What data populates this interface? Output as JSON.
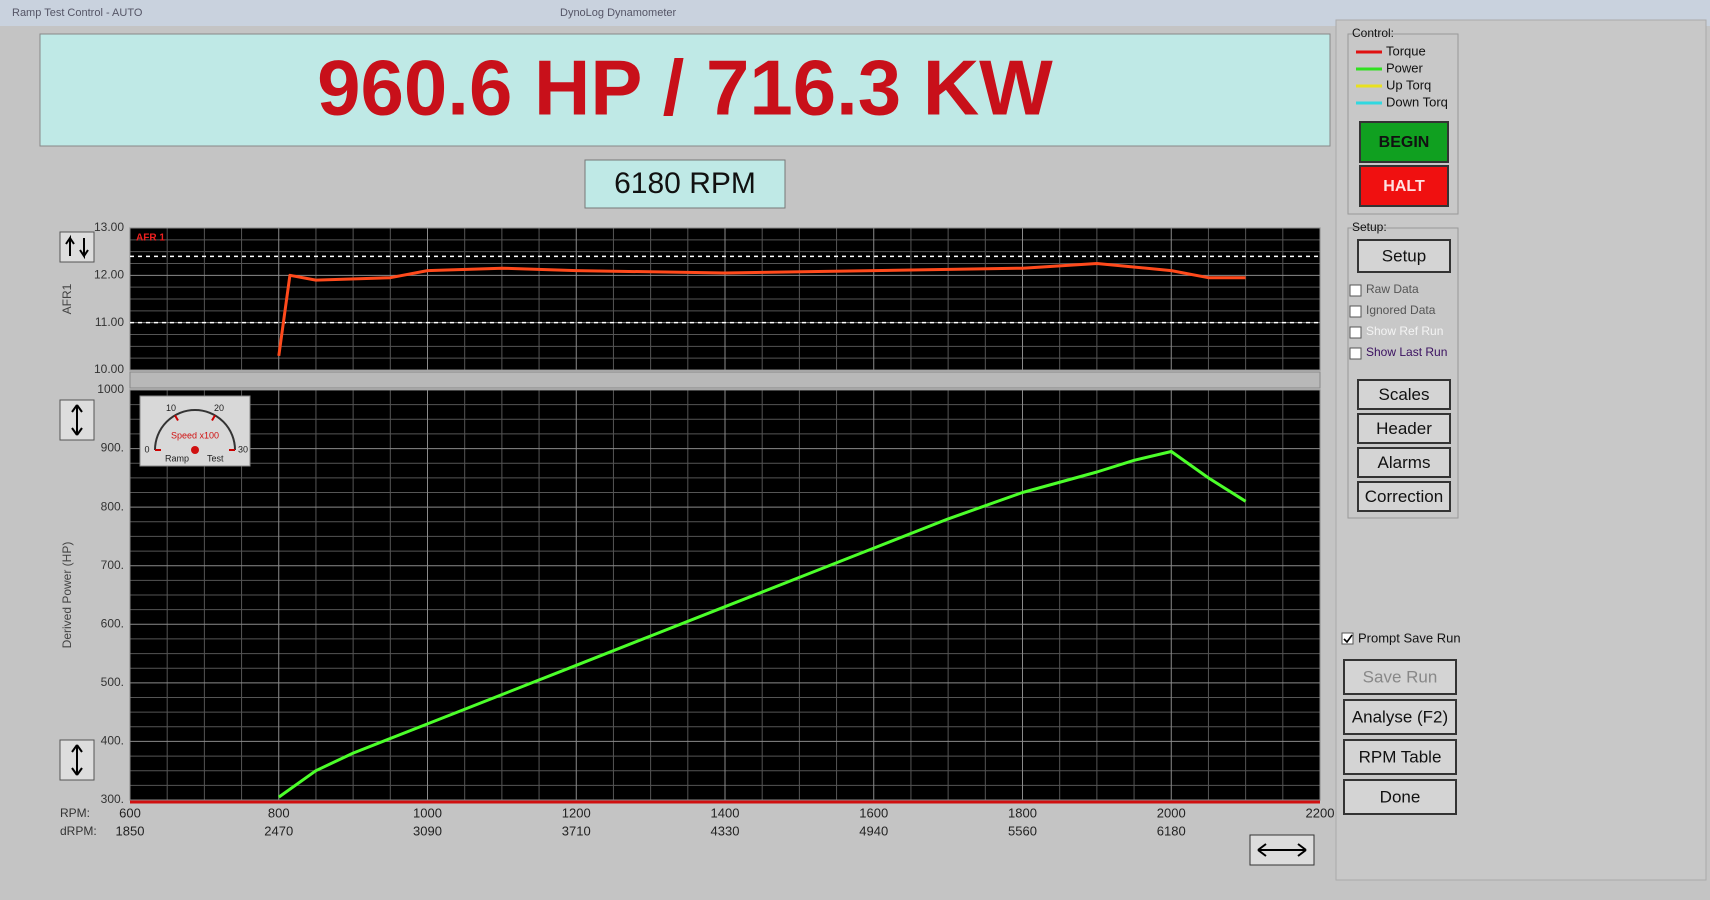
{
  "window": {
    "title": "DynoLog Dynamometer",
    "subtitle": "Ramp Test Control - AUTO"
  },
  "readout": {
    "power": "960.6 HP / 716.3 KW",
    "rpm": "6180 RPM"
  },
  "afr_chart": {
    "type": "line",
    "label": "AFR 1",
    "y_label": "AFR1",
    "x": [
      800,
      815,
      850,
      950,
      1000,
      1100,
      1200,
      1400,
      1600,
      1800,
      1900,
      2000,
      2050,
      2100
    ],
    "series": [
      {
        "color": "#ff4a1c",
        "values": [
          10.3,
          12.0,
          11.9,
          11.95,
          12.1,
          12.15,
          12.1,
          12.05,
          12.1,
          12.15,
          12.25,
          12.1,
          11.95,
          11.95
        ]
      }
    ],
    "xlim": [
      600,
      2200
    ],
    "ylim": [
      10,
      13
    ],
    "yticks": [
      {
        "value": 10,
        "label": "10.00"
      },
      {
        "value": 11,
        "label": "11.00"
      },
      {
        "value": 12,
        "label": "12.00"
      },
      {
        "value": 13,
        "label": "13.00"
      }
    ],
    "limit_lines": [
      12.4,
      11
    ]
  },
  "power_chart": {
    "type": "line",
    "y_label": "Derived Power (HP)",
    "x": [
      800,
      850,
      900,
      1000,
      1100,
      1200,
      1300,
      1400,
      1500,
      1600,
      1700,
      1800,
      1900,
      1950,
      2000,
      2050,
      2100
    ],
    "series": [
      {
        "color": "#4cff2a",
        "values": [
          305,
          350,
          380,
          430,
          480,
          530,
          580,
          630,
          680,
          730,
          780,
          825,
          860,
          880,
          895,
          850,
          810
        ]
      }
    ],
    "xlim": [
      600,
      2200
    ],
    "ylim": [
      300,
      1000
    ],
    "yticks": [
      {
        "value": 300,
        "label": "300."
      },
      {
        "value": 400,
        "label": "400."
      },
      {
        "value": 500,
        "label": "500."
      },
      {
        "value": 600,
        "label": "600."
      },
      {
        "value": 700,
        "label": "700."
      },
      {
        "value": 800,
        "label": "800."
      },
      {
        "value": 900,
        "label": "900."
      },
      {
        "value": 1000,
        "label": "1000"
      }
    ],
    "xticks": [
      600,
      800,
      1000,
      1200,
      1400,
      1600,
      1800,
      2000,
      2200
    ],
    "x_row_label": "RPM:",
    "x2_row_label": "dRPM:",
    "x2_ticks": [
      1850,
      2470,
      3090,
      3710,
      4330,
      4940,
      5560,
      6180
    ],
    "gauge": {
      "label": "Speed x100",
      "ticks": [
        0,
        10,
        20,
        30
      ],
      "left_label": "Ramp",
      "right_label": "Test"
    }
  },
  "control": {
    "title": "Control:",
    "legend": [
      {
        "label": "Torque",
        "color": "#e01010"
      },
      {
        "label": "Power",
        "color": "#30e020"
      },
      {
        "label": "Up Torq",
        "color": "#e8e020"
      },
      {
        "label": "Down Torq",
        "color": "#30d8e0"
      }
    ],
    "buttons": [
      {
        "label": "BEGIN",
        "color": "#10a020"
      },
      {
        "label": "HALT",
        "color": "#f01010"
      }
    ]
  },
  "setup": {
    "title": "Setup:",
    "button": "Setup",
    "options": [
      {
        "label": "Raw Data",
        "checked": false
      },
      {
        "label": "Ignored Data",
        "checked": false
      },
      {
        "label": "Show Ref Run",
        "checked": false
      },
      {
        "label": "Show Last Run",
        "checked": false
      }
    ],
    "buttons": [
      "Scales",
      "Header",
      "Alarms",
      "Correction"
    ]
  },
  "run": {
    "prompt": {
      "label": "Prompt Save Run",
      "checked": true
    },
    "buttons": [
      {
        "label": "Save Run",
        "enabled": false
      },
      {
        "label": "Analyse (F2)",
        "enabled": true
      },
      {
        "label": "RPM Table",
        "enabled": true
      },
      {
        "label": "Done",
        "enabled": true
      }
    ]
  }
}
